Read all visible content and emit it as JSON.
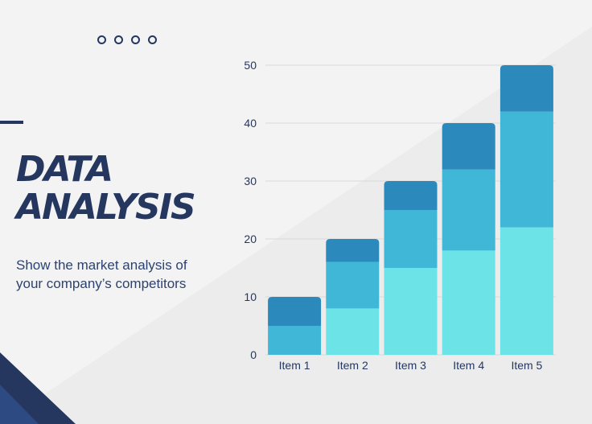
{
  "slide": {
    "title_line_1": "DATA",
    "title_line_2": "ANALYSIS",
    "subtitle_line_1": "Show the market analysis of",
    "subtitle_line_2": "your company’s competitors",
    "dot_count": 4
  },
  "colors": {
    "background": "#f3f3f3",
    "background_diagonal": "#ececec",
    "navy": "#25375f",
    "grid": "#d8d8d8",
    "series_1": "#6ce4e7",
    "series_2": "#41b7d8",
    "series_3": "#2b8abb"
  },
  "chart_data": {
    "type": "bar",
    "stacked": true,
    "categories": [
      "Item 1",
      "Item 2",
      "Item 3",
      "Item 4",
      "Item 5"
    ],
    "series": [
      {
        "values": [
          0,
          8,
          15,
          18,
          22
        ]
      },
      {
        "values": [
          5,
          8,
          10,
          14,
          20
        ]
      },
      {
        "values": [
          5,
          4,
          5,
          8,
          8
        ]
      }
    ],
    "title": "",
    "xlabel": "",
    "ylabel": "",
    "ylim": [
      0,
      50
    ],
    "yticks": [
      0,
      10,
      20,
      30,
      40,
      50
    ],
    "grid": true,
    "legend": "none"
  }
}
